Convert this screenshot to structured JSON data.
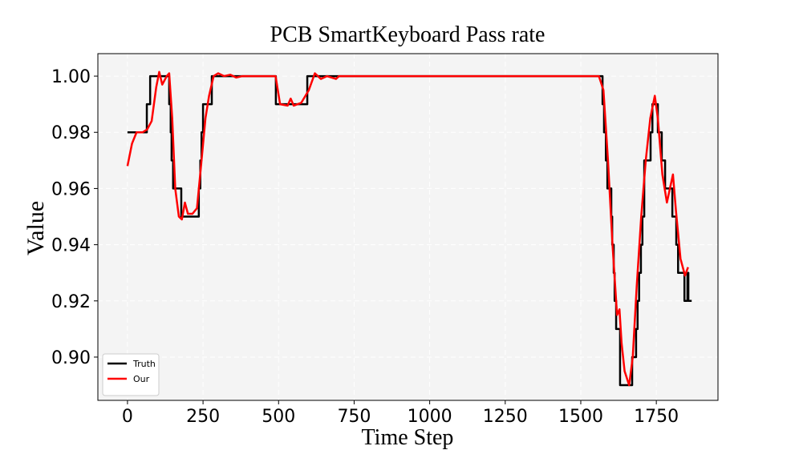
{
  "chart_data": {
    "type": "line",
    "title": "PCB SmartKeyboard Pass rate",
    "x_label": "Time Step",
    "y_label": "Value",
    "xlim": [
      -98,
      1954
    ],
    "ylim": [
      0.8846,
      1.008
    ],
    "xticks": [
      0,
      250,
      500,
      750,
      1000,
      1250,
      1500,
      1750
    ],
    "yticks": [
      {
        "value": 0.9,
        "label": "0.90"
      },
      {
        "value": 0.92,
        "label": "0.92"
      },
      {
        "value": 0.94,
        "label": "0.94"
      },
      {
        "value": 0.96,
        "label": "0.96"
      },
      {
        "value": 0.98,
        "label": "0.98"
      },
      {
        "value": 1.0,
        "label": "1.00"
      }
    ],
    "grid": true,
    "legend": "lower left",
    "series": [
      {
        "name": "Truth",
        "color": "#000000",
        "drawstyle": "steps-post",
        "x": [
          0,
          64,
          75,
          138,
          143,
          146,
          151,
          178,
          236,
          241,
          245,
          250,
          279,
          491,
          595,
          1572,
          1577,
          1583,
          1588,
          1601,
          1604,
          1609,
          1612,
          1617,
          1630,
          1670,
          1683,
          1688,
          1693,
          1699,
          1704,
          1710,
          1731,
          1737,
          1755,
          1768,
          1779,
          1803,
          1816,
          1822,
          1843,
          1853,
          1856,
          1867
        ],
        "values": [
          0.98,
          0.99,
          1.0,
          0.99,
          0.98,
          0.97,
          0.96,
          0.95,
          0.96,
          0.97,
          0.98,
          0.99,
          1.0,
          0.99,
          1.0,
          0.99,
          0.98,
          0.97,
          0.96,
          0.95,
          0.94,
          0.93,
          0.92,
          0.91,
          0.89,
          0.9,
          0.91,
          0.92,
          0.93,
          0.94,
          0.95,
          0.97,
          0.98,
          0.99,
          0.98,
          0.97,
          0.96,
          0.95,
          0.94,
          0.93,
          0.92,
          0.93,
          0.92,
          0.92
        ]
      },
      {
        "name": "Our",
        "color": "#ff0000",
        "x": [
          0,
          15,
          30,
          50,
          65,
          80,
          95,
          105,
          115,
          130,
          138,
          148,
          158,
          170,
          180,
          190,
          200,
          215,
          230,
          245,
          258,
          270,
          285,
          300,
          320,
          340,
          360,
          380,
          490,
          505,
          530,
          540,
          550,
          575,
          600,
          620,
          640,
          660,
          690,
          700,
          1560,
          1575,
          1590,
          1605,
          1620,
          1628,
          1635,
          1645,
          1660,
          1672,
          1685,
          1700,
          1715,
          1730,
          1745,
          1755,
          1770,
          1785,
          1795,
          1805,
          1815,
          1830,
          1845,
          1855
        ],
        "values": [
          0.968,
          0.976,
          0.98,
          0.98,
          0.981,
          0.984,
          0.996,
          1.0015,
          0.997,
          1.0,
          1.001,
          0.985,
          0.96,
          0.95,
          0.949,
          0.955,
          0.951,
          0.951,
          0.953,
          0.97,
          0.985,
          0.993,
          1.0,
          1.001,
          1.0,
          1.0005,
          0.9995,
          1.0,
          1.0,
          0.99,
          0.9895,
          0.992,
          0.9895,
          0.9905,
          0.995,
          1.001,
          0.999,
          1.0,
          0.999,
          1.0,
          1.0,
          0.995,
          0.97,
          0.94,
          0.915,
          0.917,
          0.905,
          0.895,
          0.89,
          0.9,
          0.925,
          0.95,
          0.97,
          0.985,
          0.993,
          0.985,
          0.965,
          0.955,
          0.96,
          0.965,
          0.952,
          0.935,
          0.929,
          0.932
        ]
      }
    ]
  }
}
